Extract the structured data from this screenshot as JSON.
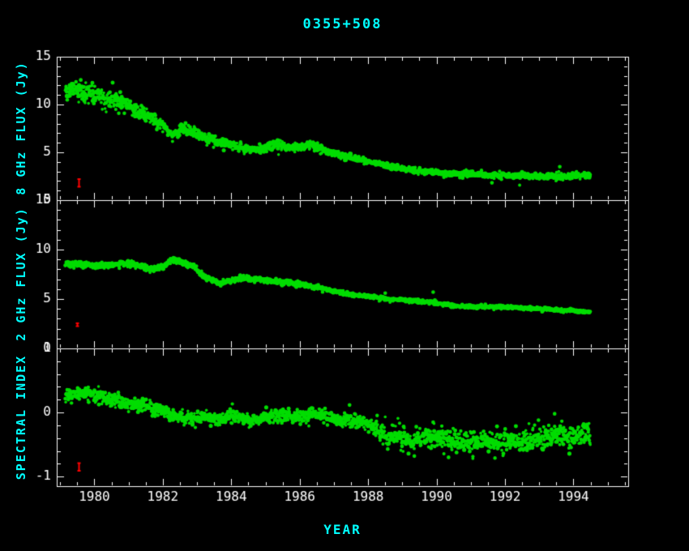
{
  "colors": {
    "background": "#000000",
    "frame": "#ffffff",
    "tick_text": "#ffffff",
    "accent": "#00ffff",
    "points": "#00dd00",
    "error": "#ff0000"
  },
  "chart_data": {
    "type": "scatter",
    "title": "0355+508",
    "x_axis": {
      "label": "YEAR",
      "min": 1978.9,
      "max": 1995.6,
      "major_step": 2,
      "minor_step": 0.5,
      "major_ticks": [
        "1980",
        "1982",
        "1984",
        "1986",
        "1988",
        "1990",
        "1992",
        "1994"
      ]
    },
    "panels": [
      {
        "name": "8ghz-flux",
        "ylabel": "8 GHz FLUX (Jy)",
        "ymin": 0,
        "ymax": 15,
        "major_step": 5,
        "minor_step": 1,
        "tick_labels": [
          [
            "15",
            15
          ],
          [
            "10",
            10
          ],
          [
            "5",
            5
          ],
          [
            "0",
            0
          ]
        ],
        "t_start": 1979.15,
        "t_end": 1994.5,
        "n_points": 1600,
        "sigma": {
          "type": "relative",
          "k": 0.04,
          "min": 0.15
        },
        "trend": [
          [
            1979.15,
            11.2
          ],
          [
            1979.35,
            11.6
          ],
          [
            1979.6,
            11.5
          ],
          [
            1979.9,
            11.1
          ],
          [
            1980.2,
            10.7
          ],
          [
            1980.6,
            10.3
          ],
          [
            1980.9,
            10.2
          ],
          [
            1981.2,
            9.4
          ],
          [
            1981.6,
            8.7
          ],
          [
            1982.0,
            7.9
          ],
          [
            1982.3,
            6.8
          ],
          [
            1982.55,
            7.5
          ],
          [
            1982.8,
            7.2
          ],
          [
            1983.1,
            6.8
          ],
          [
            1983.5,
            6.2
          ],
          [
            1983.9,
            5.8
          ],
          [
            1984.3,
            5.5
          ],
          [
            1984.7,
            5.3
          ],
          [
            1985.0,
            5.5
          ],
          [
            1985.35,
            5.9
          ],
          [
            1985.7,
            5.5
          ],
          [
            1986.0,
            5.6
          ],
          [
            1986.35,
            5.8
          ],
          [
            1986.7,
            5.2
          ],
          [
            1987.0,
            4.9
          ],
          [
            1987.4,
            4.5
          ],
          [
            1987.8,
            4.2
          ],
          [
            1988.2,
            3.9
          ],
          [
            1988.6,
            3.6
          ],
          [
            1989.0,
            3.3
          ],
          [
            1989.4,
            3.1
          ],
          [
            1989.8,
            2.95
          ],
          [
            1990.2,
            2.85
          ],
          [
            1990.7,
            2.75
          ],
          [
            1991.2,
            2.65
          ],
          [
            1991.7,
            2.6
          ],
          [
            1992.2,
            2.6
          ],
          [
            1992.7,
            2.55
          ],
          [
            1993.2,
            2.5
          ],
          [
            1993.7,
            2.5
          ],
          [
            1994.2,
            2.55
          ],
          [
            1994.5,
            2.6
          ]
        ],
        "outliers": [
          [
            1993.6,
            3.5
          ]
        ],
        "error_bar": {
          "x": 1979.55,
          "y": 1.8,
          "half": 0.4
        }
      },
      {
        "name": "2ghz-flux",
        "ylabel": "2 GHz FLUX (Jy)",
        "ymin": 0,
        "ymax": 15,
        "major_step": 5,
        "minor_step": 1,
        "tick_labels": [
          [
            "15",
            15
          ],
          [
            "10",
            10
          ],
          [
            "5",
            5
          ],
          [
            "0",
            0
          ]
        ],
        "t_start": 1979.15,
        "t_end": 1994.5,
        "n_points": 1600,
        "sigma": {
          "type": "relative",
          "k": 0.018,
          "min": 0.08
        },
        "trend": [
          [
            1979.15,
            8.4
          ],
          [
            1979.5,
            8.5
          ],
          [
            1980.0,
            8.4
          ],
          [
            1980.5,
            8.5
          ],
          [
            1981.0,
            8.6
          ],
          [
            1981.3,
            8.4
          ],
          [
            1981.6,
            7.9
          ],
          [
            1982.0,
            8.3
          ],
          [
            1982.3,
            8.9
          ],
          [
            1982.6,
            8.7
          ],
          [
            1982.9,
            8.3
          ],
          [
            1983.1,
            7.5
          ],
          [
            1983.4,
            7.0
          ],
          [
            1983.7,
            6.6
          ],
          [
            1984.0,
            6.9
          ],
          [
            1984.3,
            7.1
          ],
          [
            1984.7,
            7.0
          ],
          [
            1985.0,
            6.9
          ],
          [
            1985.4,
            6.7
          ],
          [
            1985.8,
            6.6
          ],
          [
            1986.2,
            6.4
          ],
          [
            1986.6,
            6.1
          ],
          [
            1987.0,
            5.8
          ],
          [
            1987.4,
            5.5
          ],
          [
            1987.8,
            5.3
          ],
          [
            1988.2,
            5.2
          ],
          [
            1988.6,
            5.0
          ],
          [
            1989.0,
            4.9
          ],
          [
            1989.4,
            4.8
          ],
          [
            1989.8,
            4.7
          ],
          [
            1990.2,
            4.5
          ],
          [
            1990.6,
            4.3
          ],
          [
            1991.0,
            4.25
          ],
          [
            1991.5,
            4.2
          ],
          [
            1992.0,
            4.2
          ],
          [
            1992.5,
            4.1
          ],
          [
            1993.0,
            4.0
          ],
          [
            1993.5,
            3.9
          ],
          [
            1994.0,
            3.8
          ],
          [
            1994.5,
            3.7
          ]
        ],
        "outliers": [
          [
            1988.5,
            5.6
          ],
          [
            1989.9,
            5.7
          ]
        ],
        "error_bar": {
          "x": 1979.5,
          "y": 2.4,
          "half": 0.15
        }
      },
      {
        "name": "spectral-index",
        "ylabel": "SPECTRAL INDEX",
        "ymin": -1.15,
        "ymax": 1,
        "major_step": 1,
        "minor_step": 0.2,
        "tick_labels": [
          [
            "1",
            1
          ],
          [
            "0",
            0
          ],
          [
            "-1",
            -1
          ]
        ],
        "t_start": 1979.15,
        "t_end": 1994.5,
        "n_points": 1600,
        "sigma": {
          "type": "step",
          "before": 0.05,
          "after": 0.085,
          "break_t": 1988.2
        },
        "trend": [
          [
            1979.15,
            0.28
          ],
          [
            1979.6,
            0.3
          ],
          [
            1980.0,
            0.27
          ],
          [
            1980.5,
            0.22
          ],
          [
            1981.0,
            0.15
          ],
          [
            1981.5,
            0.1
          ],
          [
            1982.0,
            0.02
          ],
          [
            1982.4,
            -0.08
          ],
          [
            1982.8,
            -0.1
          ],
          [
            1983.2,
            -0.07
          ],
          [
            1983.6,
            -0.12
          ],
          [
            1984.0,
            -0.07
          ],
          [
            1984.5,
            -0.12
          ],
          [
            1985.0,
            -0.08
          ],
          [
            1985.5,
            -0.05
          ],
          [
            1986.0,
            -0.08
          ],
          [
            1986.5,
            -0.03
          ],
          [
            1987.0,
            -0.1
          ],
          [
            1987.5,
            -0.14
          ],
          [
            1988.0,
            -0.16
          ],
          [
            1988.35,
            -0.32
          ],
          [
            1988.8,
            -0.38
          ],
          [
            1989.2,
            -0.42
          ],
          [
            1989.6,
            -0.4
          ],
          [
            1990.0,
            -0.38
          ],
          [
            1990.5,
            -0.45
          ],
          [
            1991.0,
            -0.47
          ],
          [
            1991.5,
            -0.45
          ],
          [
            1992.0,
            -0.44
          ],
          [
            1992.5,
            -0.42
          ],
          [
            1993.0,
            -0.4
          ],
          [
            1993.5,
            -0.36
          ],
          [
            1994.0,
            -0.38
          ],
          [
            1994.5,
            -0.33
          ]
        ],
        "outliers": [
          [
            1989.35,
            -0.68
          ],
          [
            1990.35,
            -0.7
          ],
          [
            1989.9,
            -0.15
          ],
          [
            1993.45,
            -0.02
          ]
        ],
        "error_bar": {
          "x": 1979.55,
          "y": -0.85,
          "half": 0.06
        }
      }
    ]
  }
}
